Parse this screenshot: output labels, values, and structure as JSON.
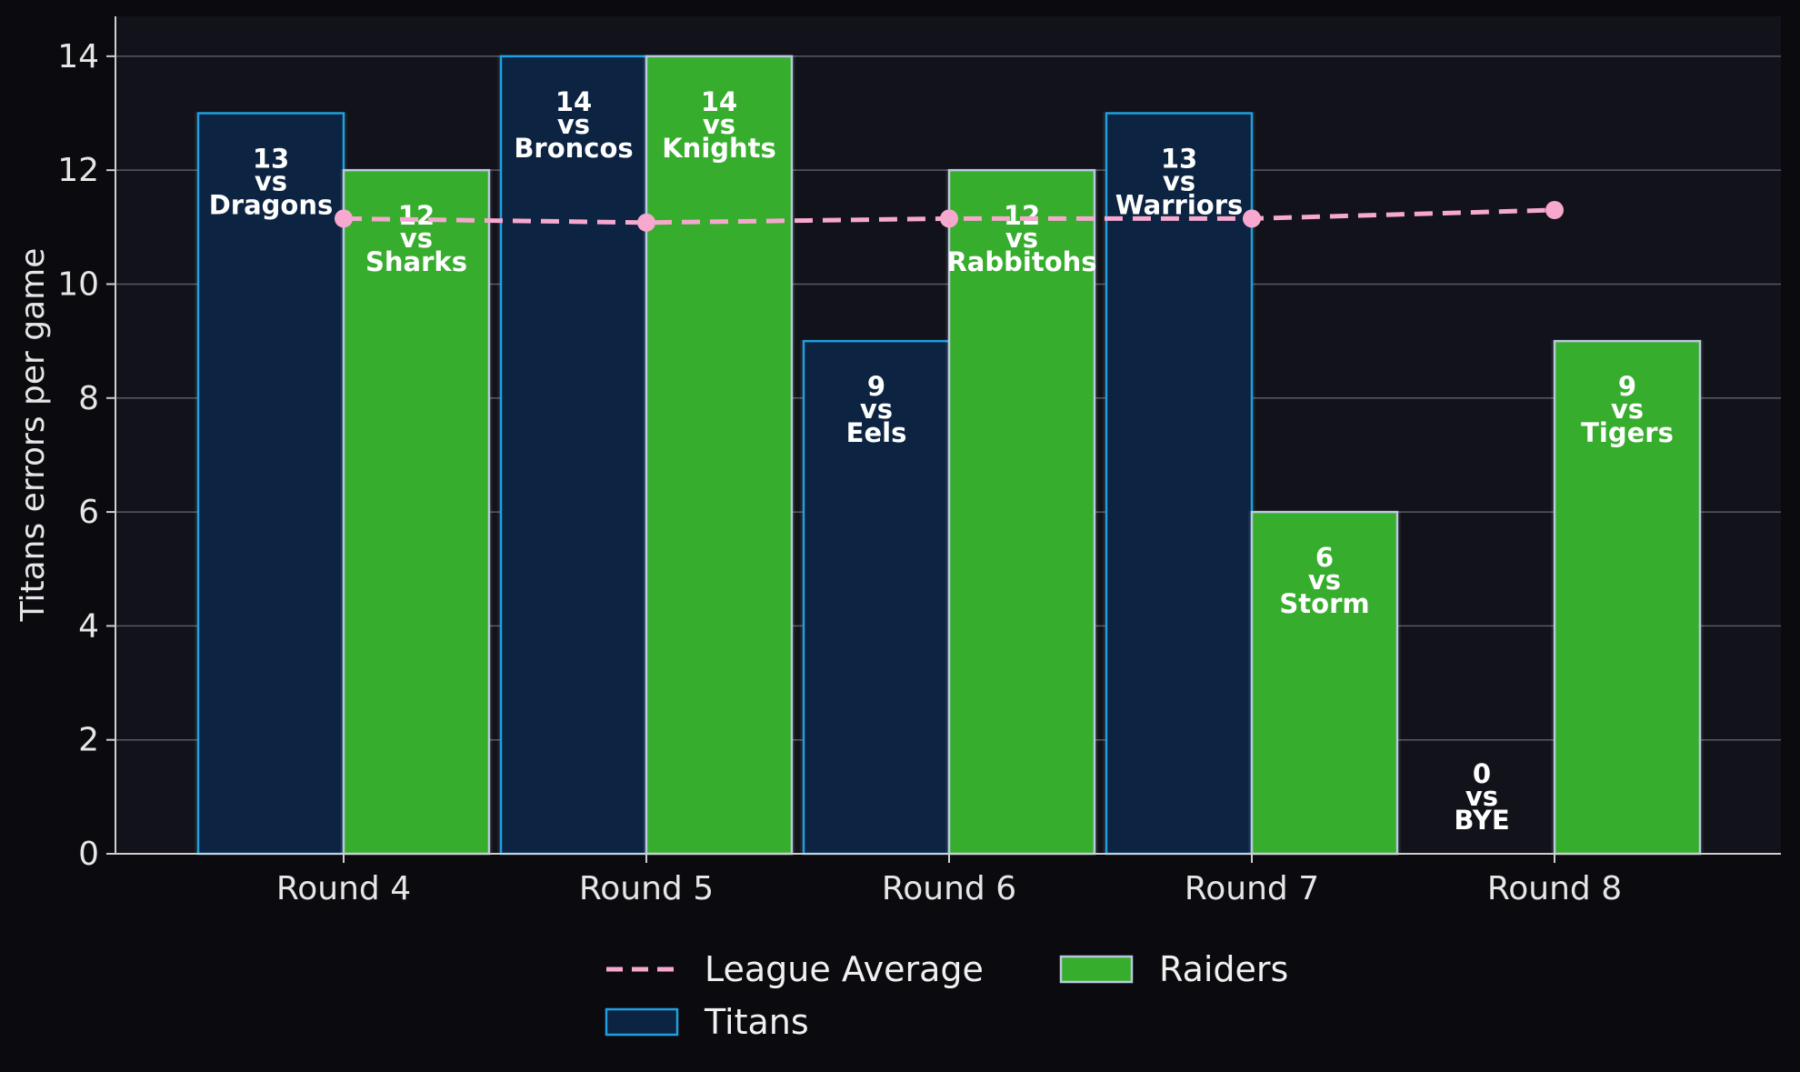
{
  "chart_data": {
    "type": "bar",
    "title": "",
    "xlabel": "",
    "ylabel": "Titans errors per game",
    "ylim": [
      0,
      14.7
    ],
    "yticks": [
      0,
      2,
      4,
      6,
      8,
      10,
      12,
      14
    ],
    "categories": [
      "Round 4",
      "Round 5",
      "Round 6",
      "Round 7",
      "Round 8"
    ],
    "grid": true,
    "legend_position": "bottom-center",
    "series": [
      {
        "name": "Titans",
        "kind": "bar",
        "color": "#0c2341",
        "edge_color": "#1fa0e0",
        "values": [
          13,
          14,
          9,
          13,
          0
        ],
        "value_labels": [
          "13",
          "14",
          "9",
          "13",
          "0"
        ],
        "connector": [
          "vs",
          "vs",
          "vs",
          "vs",
          "vs"
        ],
        "opponents": [
          "Dragons",
          "Broncos",
          "Eels",
          "Warriors",
          "BYE"
        ]
      },
      {
        "name": "Raiders",
        "kind": "bar",
        "color": "#37ad2e",
        "edge_color": "#b9c9dd",
        "values": [
          12,
          14,
          12,
          6,
          9
        ],
        "value_labels": [
          "12",
          "14",
          "12",
          "6",
          "9"
        ],
        "connector": [
          "vs",
          "vs",
          "vs",
          "vs",
          "vs"
        ],
        "opponents": [
          "Sharks",
          "Knights",
          "Rabbitohs",
          "Storm",
          "Tigers"
        ]
      },
      {
        "name": "League Average",
        "kind": "line",
        "style": "dashed",
        "color": "#f7a8cf",
        "values": [
          11.15,
          11.08,
          11.15,
          11.15,
          11.3
        ]
      }
    ],
    "colors": {
      "background": "#0b0b0f",
      "plot_background": "#12121a",
      "grid": "#5a5a66",
      "text": "#e6e6e6"
    }
  }
}
